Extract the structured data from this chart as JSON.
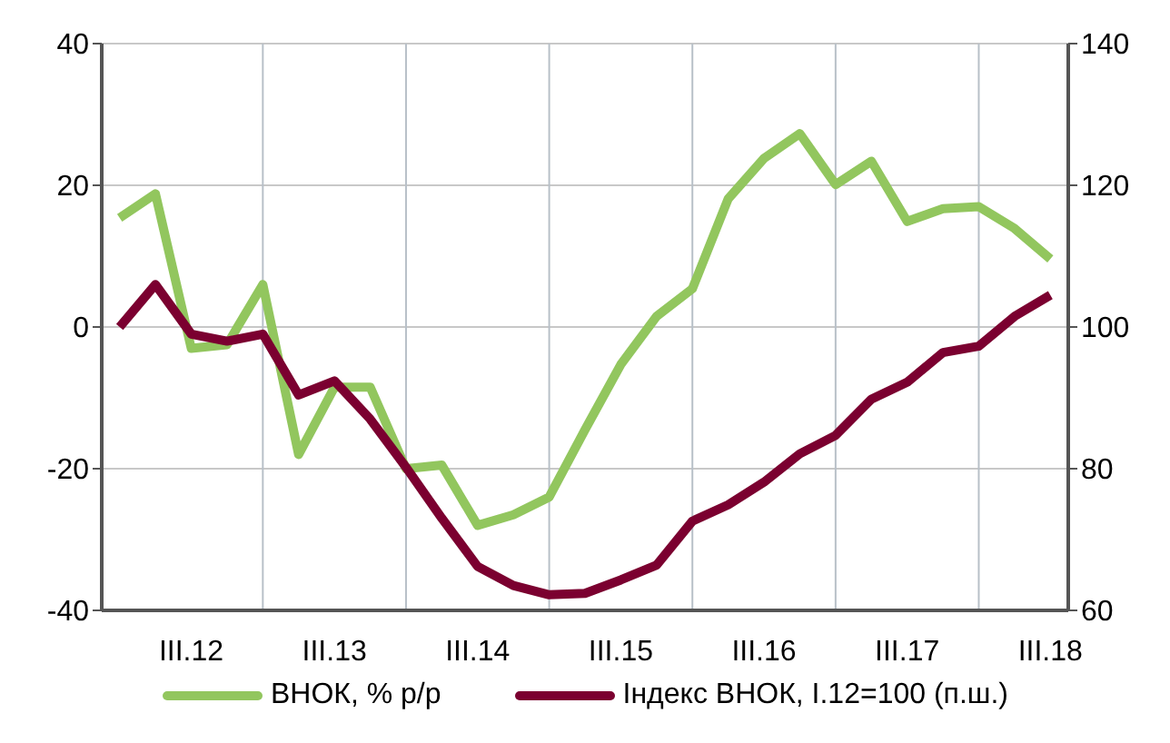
{
  "chart_data": {
    "type": "line",
    "categories": [
      null,
      null,
      "III.12",
      null,
      null,
      null,
      "III.13",
      null,
      null,
      null,
      "III.14",
      null,
      null,
      null,
      "III.15",
      null,
      null,
      null,
      "III.16",
      null,
      null,
      null,
      "III.17",
      null,
      null,
      null,
      "III.18"
    ],
    "series": [
      {
        "name": "ВНОК, % р/р",
        "color": "#92c65e",
        "values": [
          15.4,
          18.8,
          -3,
          -2.5,
          6,
          -18,
          -8.5,
          -8.5,
          -20,
          -19.5,
          -28,
          -26.5,
          -24,
          -14.5,
          -5.3,
          1.5,
          5.4,
          18.1,
          23.8,
          27.3,
          20.1,
          23.4,
          14.9,
          16.7,
          17,
          13.9,
          9.6
        ]
      },
      {
        "name": "Індекс ВНОК, I.12=100 (п.ш.)",
        "color": "#7b0030",
        "axis": "y2",
        "values": [
          100,
          106,
          99,
          98,
          99,
          90.4,
          92.4,
          87,
          80.2,
          73,
          66.2,
          63.5,
          62.2,
          62.4,
          64.3,
          66.4,
          72.6,
          74.9,
          78.1,
          82.1,
          84.7,
          89.8,
          92.2,
          96.4,
          97.3,
          101.5,
          104.5
        ]
      }
    ],
    "ylim": [
      -40,
      40
    ],
    "yticks": [
      -40,
      -20,
      0,
      20,
      40
    ],
    "y2lim": [
      60,
      140
    ],
    "y2ticks": [
      60,
      80,
      100,
      120,
      140
    ],
    "grid": true,
    "legend": "bottom",
    "marker": "none",
    "line_style": "solid"
  }
}
